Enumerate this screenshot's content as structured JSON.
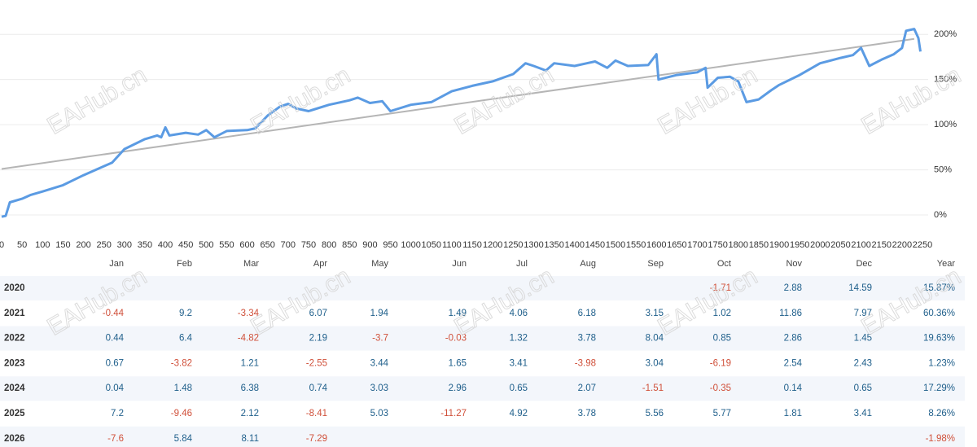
{
  "chart_data": {
    "type": "line",
    "series": [
      {
        "color": "#5b9be3",
        "x": [
          0,
          10,
          20,
          50,
          70,
          100,
          150,
          200,
          250,
          270,
          300,
          350,
          380,
          390,
          400,
          410,
          450,
          480,
          500,
          520,
          550,
          600,
          620,
          650,
          680,
          700,
          720,
          750,
          800,
          850,
          870,
          900,
          930,
          950,
          1000,
          1050,
          1100,
          1150,
          1200,
          1250,
          1280,
          1300,
          1330,
          1350,
          1400,
          1430,
          1450,
          1480,
          1500,
          1530,
          1580,
          1600,
          1605,
          1650,
          1700,
          1720,
          1725,
          1750,
          1780,
          1800,
          1820,
          1850,
          1880,
          1900,
          1950,
          2000,
          2050,
          2080,
          2100,
          2120,
          2150,
          2180,
          2200,
          2210,
          2230,
          2240,
          2245
        ],
        "values": [
          -2,
          -1,
          14,
          18,
          22,
          26,
          33,
          44,
          54,
          58,
          73,
          84,
          88,
          86,
          97,
          88,
          91,
          89,
          94,
          86,
          93,
          94,
          96,
          110,
          120,
          123,
          118,
          115,
          122,
          127,
          130,
          124,
          126,
          115,
          122,
          125,
          137,
          143,
          148,
          156,
          168,
          165,
          160,
          168,
          165,
          168,
          170,
          163,
          171,
          165,
          166,
          178,
          150,
          155,
          158,
          163,
          141,
          152,
          153,
          148,
          125,
          128,
          138,
          144,
          155,
          168,
          174,
          177,
          185,
          165,
          172,
          178,
          185,
          204,
          206,
          196,
          181
        ]
      },
      {
        "color": "#b5b5b5",
        "x": [
          0,
          2230
        ],
        "values": [
          51,
          195
        ]
      }
    ],
    "xlim": [
      0,
      2250
    ],
    "xticks": [
      0,
      50,
      100,
      150,
      200,
      250,
      300,
      350,
      400,
      450,
      500,
      550,
      600,
      650,
      700,
      750,
      800,
      850,
      900,
      950,
      1000,
      1050,
      1100,
      1150,
      1200,
      1250,
      1300,
      1350,
      1400,
      1450,
      1500,
      1550,
      1600,
      1650,
      1700,
      1750,
      1800,
      1850,
      1900,
      1950,
      2000,
      2050,
      2100,
      2150,
      2200,
      2250
    ],
    "ylim": [
      -25,
      230
    ],
    "yticks": [
      {
        "value": 0,
        "label": "0%"
      },
      {
        "value": 50,
        "label": "50%"
      },
      {
        "value": 100,
        "label": "100%"
      },
      {
        "value": 150,
        "label": "150%"
      },
      {
        "value": 200,
        "label": "200%"
      }
    ],
    "grid": true
  },
  "watermark": "EAHub.cn",
  "table": {
    "columns": [
      "Jan",
      "Feb",
      "Mar",
      "Apr",
      "May",
      "Jun",
      "Jul",
      "Aug",
      "Sep",
      "Oct",
      "Nov",
      "Dec",
      "Year"
    ],
    "rows": [
      {
        "year": "2020",
        "cells": [
          null,
          null,
          null,
          null,
          null,
          null,
          null,
          null,
          null,
          "-1.71",
          "2.88",
          "14.59",
          "15.87%"
        ]
      },
      {
        "year": "2021",
        "cells": [
          "-0.44",
          "9.2",
          "-3.34",
          "6.07",
          "1.94",
          "1.49",
          "4.06",
          "6.18",
          "3.15",
          "1.02",
          "11.86",
          "7.97",
          "60.36%"
        ]
      },
      {
        "year": "2022",
        "cells": [
          "0.44",
          "6.4",
          "-4.82",
          "2.19",
          "-3.7",
          "-0.03",
          "1.32",
          "3.78",
          "8.04",
          "0.85",
          "2.86",
          "1.45",
          "19.63%"
        ]
      },
      {
        "year": "2023",
        "cells": [
          "0.67",
          "-3.82",
          "1.21",
          "-2.55",
          "3.44",
          "1.65",
          "3.41",
          "-3.98",
          "3.04",
          "-6.19",
          "2.54",
          "2.43",
          "1.23%"
        ]
      },
      {
        "year": "2024",
        "cells": [
          "0.04",
          "1.48",
          "6.38",
          "0.74",
          "3.03",
          "2.96",
          "0.65",
          "2.07",
          "-1.51",
          "-0.35",
          "0.14",
          "0.65",
          "17.29%"
        ]
      },
      {
        "year": "2025",
        "cells": [
          "7.2",
          "-9.46",
          "2.12",
          "-8.41",
          "5.03",
          "-11.27",
          "4.92",
          "3.78",
          "5.56",
          "5.77",
          "1.81",
          "3.41",
          "8.26%"
        ]
      },
      {
        "year": "2026",
        "cells": [
          "-7.6",
          "5.84",
          "8.11",
          "-7.29",
          null,
          null,
          null,
          null,
          null,
          null,
          null,
          null,
          "-1.98%"
        ]
      }
    ]
  }
}
